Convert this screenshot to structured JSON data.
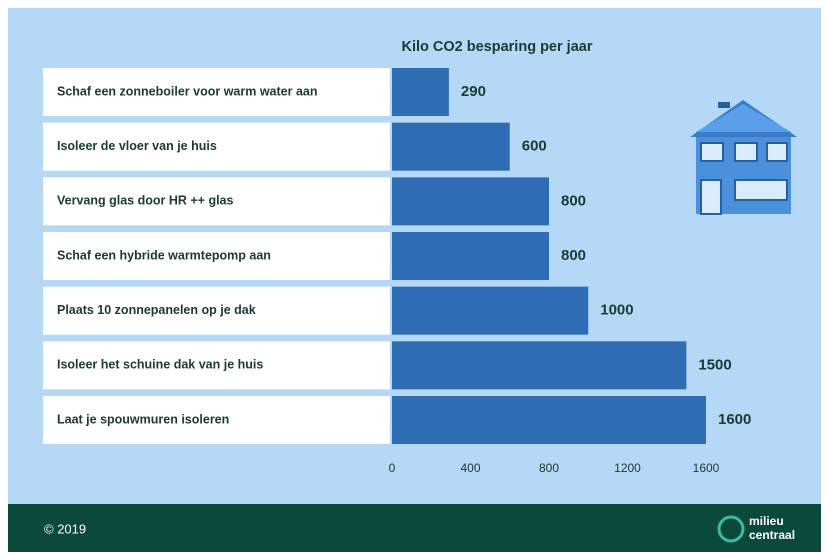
{
  "chart_data": {
    "type": "bar",
    "orientation": "horizontal",
    "title": "Kilo CO2 besparing per jaar",
    "categories": [
      "Schaf een zonneboiler voor warm water aan",
      "Isoleer de vloer van je huis",
      "Vervang glas door HR ++ glas",
      "Schaf een hybride warmtepomp aan",
      "Plaats 10 zonnepanelen op je dak",
      "Isoleer het schuine dak van je huis",
      "Laat je spouwmuren isoleren"
    ],
    "values": [
      290,
      600,
      800,
      800,
      1000,
      1500,
      1600
    ],
    "color": "#2e6db3",
    "xlim": [
      0,
      1600
    ],
    "xticks": [
      0,
      400,
      800,
      1200,
      1600
    ],
    "grid": false
  },
  "footer": {
    "copyright": "© 2019",
    "logo": [
      "milieu",
      "centraal"
    ]
  }
}
